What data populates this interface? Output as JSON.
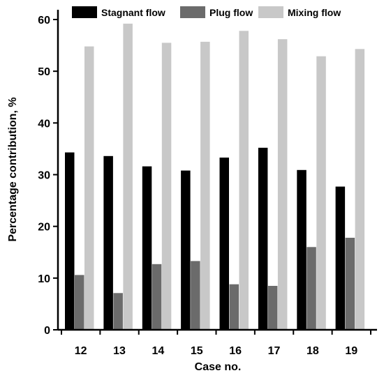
{
  "chart_data": {
    "type": "bar",
    "title": "",
    "xlabel": "Case no.",
    "ylabel": "Percentage contribution, %",
    "categories": [
      "12",
      "13",
      "14",
      "15",
      "16",
      "17",
      "18",
      "19"
    ],
    "series": [
      {
        "name": "Stagnant flow",
        "color": "#000000",
        "values": [
          34.3,
          33.6,
          31.6,
          30.8,
          33.3,
          35.2,
          30.9,
          27.7
        ]
      },
      {
        "name": "Plug flow",
        "color": "#6b6b6b",
        "values": [
          10.6,
          7.1,
          12.7,
          13.3,
          8.8,
          8.5,
          16.0,
          17.8
        ]
      },
      {
        "name": "Mixing flow",
        "color": "#c8c8c8",
        "values": [
          54.8,
          59.2,
          55.5,
          55.7,
          57.8,
          56.2,
          52.9,
          54.3
        ]
      }
    ],
    "ylim": [
      0,
      60
    ],
    "yticks": [
      0,
      10,
      20,
      30,
      40,
      50,
      60
    ],
    "grid": false,
    "legend_position": "top"
  }
}
